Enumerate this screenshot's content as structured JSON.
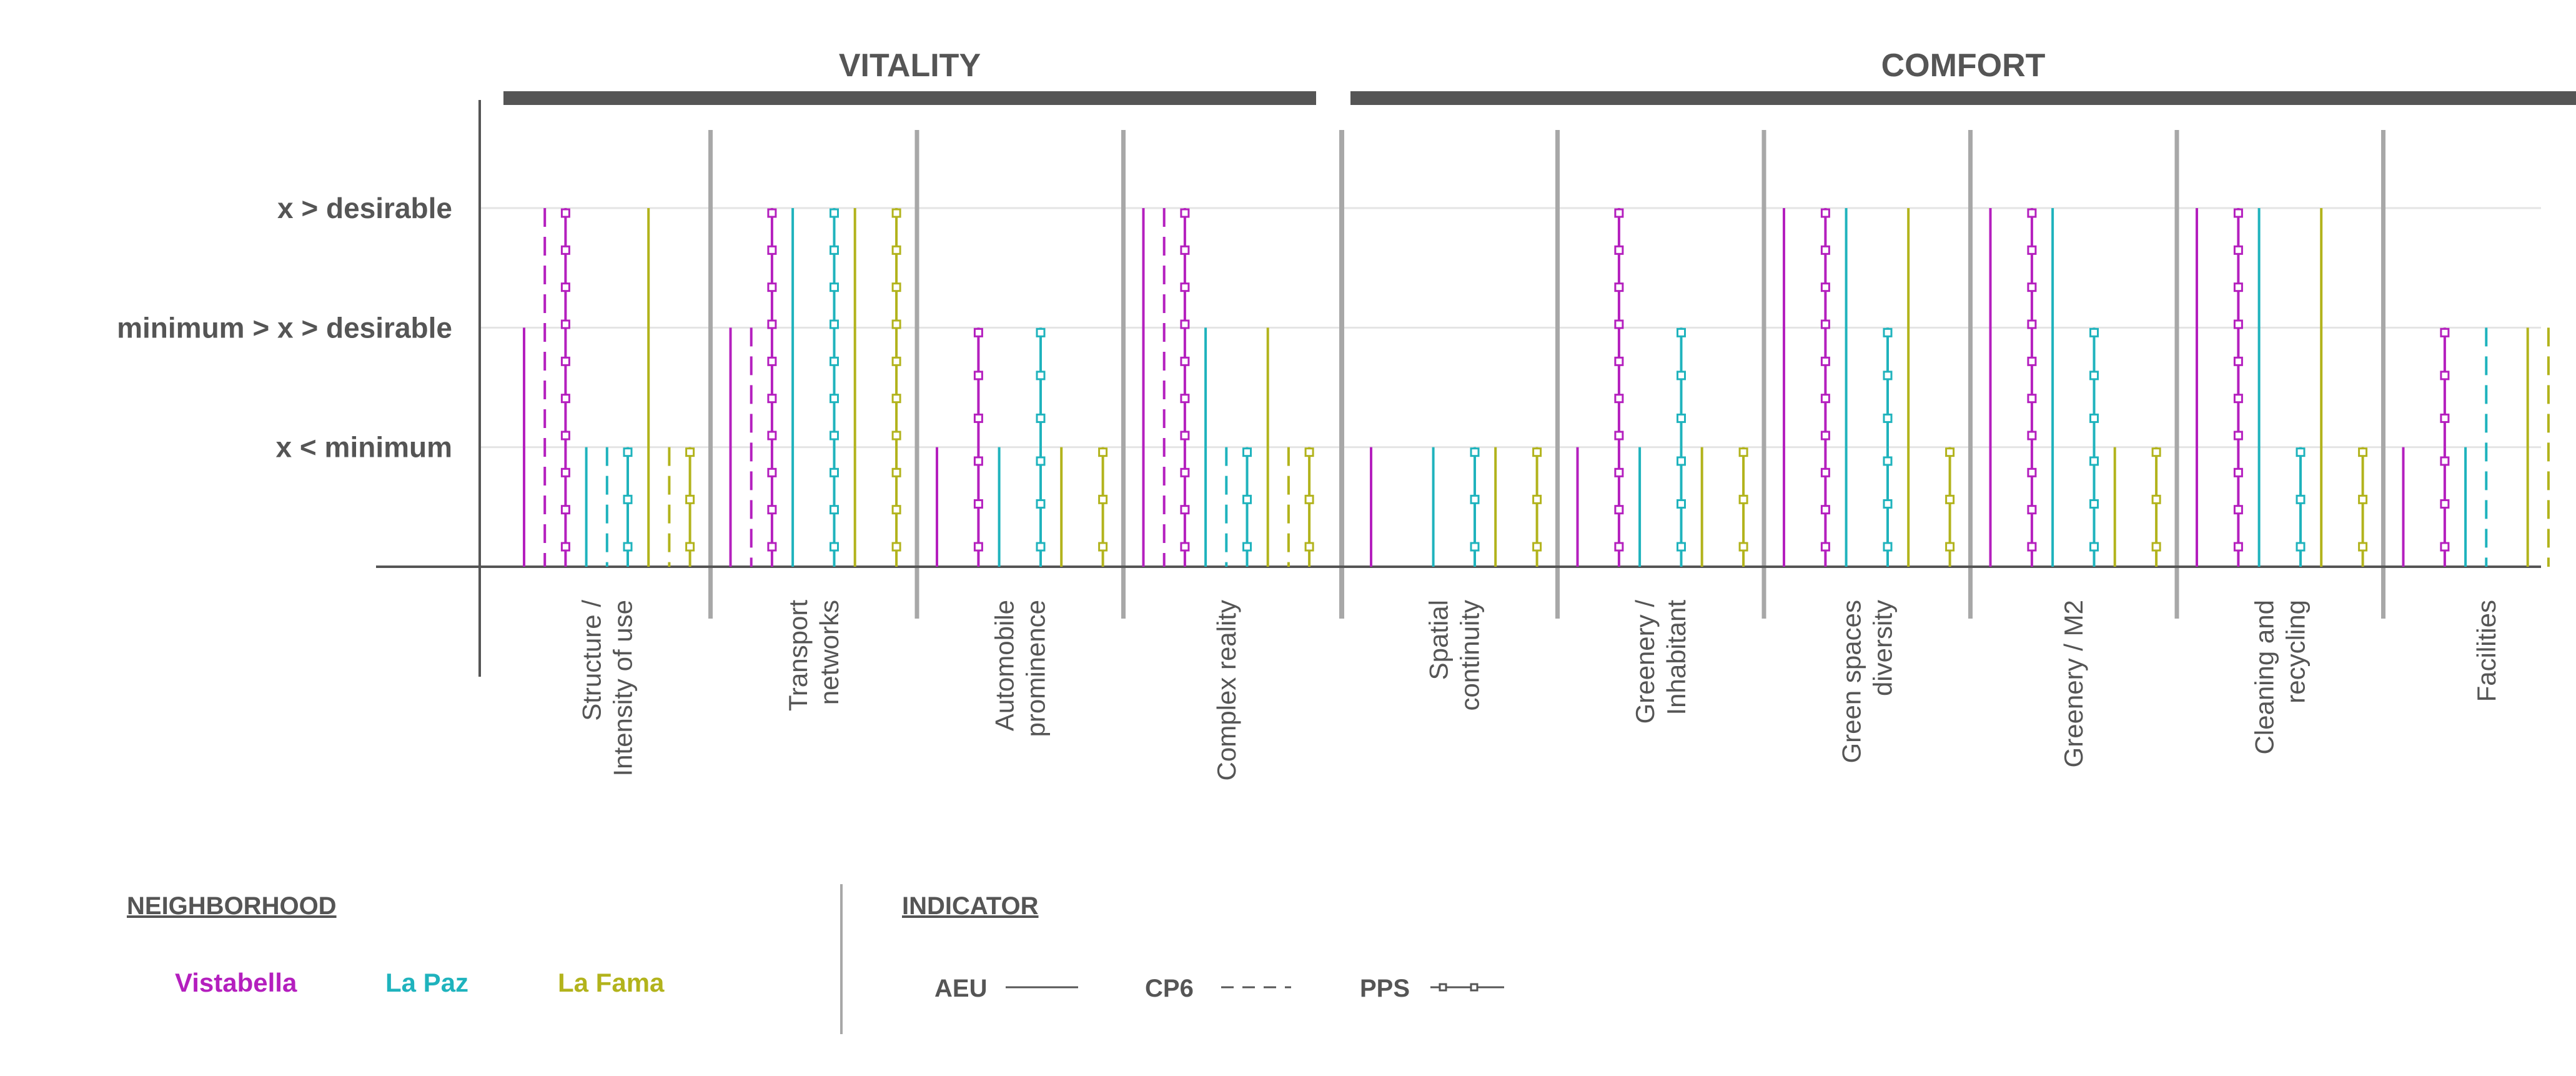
{
  "colors": {
    "vistabella": "#b41fbe",
    "la_paz": "#1fb3bd",
    "la_fama": "#b2b31c",
    "text": "#555555",
    "grid_line": "#a8a8a8",
    "group_bar": "#555555",
    "axis": "#555555",
    "divider": "#a8a8a8"
  },
  "chart_data": {
    "type": "bar",
    "title": "",
    "groups": [
      {
        "label": "VITALITY",
        "categories": [
          "Structure / Intensity of use",
          "Transport networks",
          "Automobile prominence",
          "Complex reality"
        ]
      },
      {
        "label": "COMFORT",
        "categories": [
          "Spatial continuity",
          "Greenery / Inhabitant",
          "Green spaces diversity",
          "Greenery / M2",
          "Cleaning and recycling",
          "Facilities"
        ]
      }
    ],
    "y_levels": [
      {
        "value": 1,
        "label": "x < minimum"
      },
      {
        "value": 2,
        "label": "minimum > x > desirable"
      },
      {
        "value": 3,
        "label": "x > desirable"
      }
    ],
    "ylim": [
      0,
      3.4
    ],
    "series_order": [
      "Vistabella AEU",
      "Vistabella CP6",
      "Vistabella PPS",
      "La Paz AEU",
      "La Paz CP6",
      "La Paz PPS",
      "La Fama AEU",
      "La Fama CP6",
      "La Fama PPS"
    ],
    "categories": [
      {
        "label": [
          "Structure /",
          "Intensity of use"
        ],
        "values": [
          2,
          3,
          3,
          1,
          1,
          1,
          3,
          1,
          1
        ]
      },
      {
        "label": [
          "Transport",
          "networks"
        ],
        "values": [
          2,
          2,
          3,
          3,
          null,
          3,
          3,
          null,
          3
        ]
      },
      {
        "label": [
          "Automobile",
          "prominence"
        ],
        "values": [
          1,
          null,
          2,
          1,
          null,
          2,
          1,
          null,
          1
        ]
      },
      {
        "label": [
          "Complex reality"
        ],
        "values": [
          3,
          3,
          3,
          2,
          1,
          1,
          2,
          1,
          1
        ]
      },
      {
        "label": [
          "Spatial",
          "continuity"
        ],
        "values": [
          1,
          null,
          null,
          1,
          null,
          1,
          1,
          null,
          1
        ]
      },
      {
        "label": [
          "Greenery /",
          "Inhabitant"
        ],
        "values": [
          1,
          null,
          3,
          1,
          null,
          2,
          1,
          null,
          1
        ]
      },
      {
        "label": [
          "Green spaces",
          "diversity"
        ],
        "values": [
          3,
          null,
          3,
          3,
          null,
          2,
          3,
          null,
          1
        ]
      },
      {
        "label": [
          "Greenery / M2"
        ],
        "values": [
          3,
          null,
          3,
          3,
          null,
          2,
          1,
          null,
          1
        ]
      },
      {
        "label": [
          "Cleaning and",
          "recycling"
        ],
        "values": [
          3,
          null,
          3,
          3,
          null,
          1,
          3,
          null,
          1
        ]
      },
      {
        "label": [
          "Facilities"
        ],
        "values": [
          1,
          null,
          2,
          1,
          2,
          null,
          2,
          2,
          null
        ]
      }
    ]
  },
  "legend": {
    "neighborhood_title": "NEIGHBORHOOD",
    "neighborhoods": [
      "Vistabella",
      "La Paz",
      "La Fama"
    ],
    "indicator_title": "INDICATOR",
    "indicators": [
      "AEU",
      "CP6",
      "PPS"
    ]
  }
}
